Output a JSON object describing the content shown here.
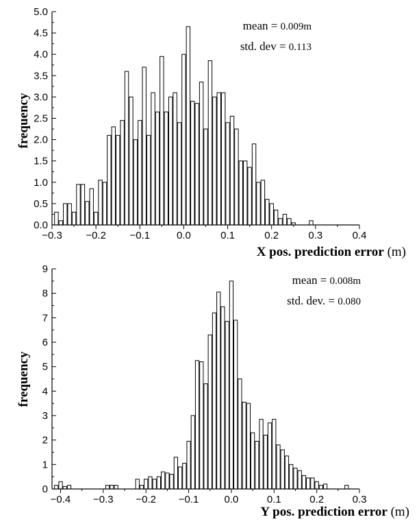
{
  "chart_data": [
    {
      "type": "bar",
      "title": "",
      "ylabel": "frequency",
      "xlabel": "X pos. prediction error",
      "xlabel_unit": "(m)",
      "xlim": [
        -0.3,
        0.4
      ],
      "ylim": [
        0.0,
        5.0
      ],
      "xticks": [
        "-0.3",
        "-0.2",
        "-0.1",
        "0.0",
        "0.1",
        "0.2",
        "0.3",
        "0.4"
      ],
      "yticks": [
        "0.0",
        "0.5",
        "1.0",
        "1.5",
        "2.0",
        "2.5",
        "3.0",
        "3.5",
        "4.0",
        "4.5",
        "5.0"
      ],
      "grid": false,
      "annotations": {
        "mean_label": "mean =",
        "mean_value": "0.009m",
        "std_label": "std. dev =",
        "std_value": "0.113"
      },
      "x": [
        -0.29,
        -0.28,
        -0.27,
        -0.26,
        -0.25,
        -0.24,
        -0.23,
        -0.22,
        -0.21,
        -0.2,
        -0.19,
        -0.18,
        -0.17,
        -0.16,
        -0.15,
        -0.14,
        -0.13,
        -0.12,
        -0.11,
        -0.1,
        -0.09,
        -0.08,
        -0.07,
        -0.06,
        -0.05,
        -0.04,
        -0.03,
        -0.02,
        -0.01,
        0.0,
        0.01,
        0.02,
        0.03,
        0.04,
        0.05,
        0.06,
        0.07,
        0.08,
        0.09,
        0.1,
        0.11,
        0.12,
        0.13,
        0.14,
        0.15,
        0.16,
        0.17,
        0.18,
        0.19,
        0.2,
        0.21,
        0.22,
        0.23,
        0.24,
        0.25,
        0.26,
        0.27,
        0.28,
        0.29,
        0.3,
        0.31
      ],
      "values": [
        0.3,
        0.1,
        0.5,
        0.5,
        0.3,
        0.95,
        0.95,
        0.55,
        0.85,
        0.3,
        1.05,
        1.0,
        2.1,
        2.3,
        2.1,
        2.45,
        3.6,
        3.0,
        2.0,
        2.45,
        3.7,
        2.1,
        3.1,
        2.65,
        3.95,
        2.65,
        3.0,
        3.1,
        2.4,
        4.0,
        4.65,
        2.9,
        2.85,
        3.35,
        2.25,
        3.85,
        3.0,
        3.1,
        3.1,
        2.4,
        2.55,
        2.25,
        1.5,
        1.5,
        1.35,
        1.9,
        1.0,
        1.05,
        0.6,
        0.5,
        0.35,
        0.15,
        0.25,
        0.15,
        0.05,
        0.0,
        0.0,
        0.0,
        0.1,
        0.0,
        0.0
      ]
    },
    {
      "type": "bar",
      "title": "",
      "ylabel": "frequency",
      "xlabel": "Y pos. prediction error",
      "xlabel_unit": "(m)",
      "xlim": [
        -0.42,
        0.3
      ],
      "ylim": [
        0,
        9
      ],
      "xticks": [
        "-0.4",
        "-0.3",
        "-0.2",
        "-0.1",
        "0.0",
        "0.1",
        "0.2",
        "0.3"
      ],
      "yticks": [
        "0",
        "1",
        "2",
        "3",
        "4",
        "5",
        "6",
        "7",
        "8",
        "9"
      ],
      "grid": false,
      "annotations": {
        "mean_label": "mean =",
        "mean_value": "0.008m",
        "std_label": "std. dev. =",
        "std_value": "0.080"
      },
      "x": [
        -0.41,
        -0.4,
        -0.39,
        -0.38,
        -0.29,
        -0.28,
        -0.27,
        -0.22,
        -0.21,
        -0.2,
        -0.19,
        -0.18,
        -0.17,
        -0.16,
        -0.15,
        -0.14,
        -0.13,
        -0.12,
        -0.11,
        -0.1,
        -0.09,
        -0.08,
        -0.07,
        -0.06,
        -0.05,
        -0.04,
        -0.03,
        -0.02,
        -0.01,
        0.0,
        0.01,
        0.02,
        0.03,
        0.04,
        0.05,
        0.06,
        0.07,
        0.08,
        0.09,
        0.1,
        0.11,
        0.12,
        0.13,
        0.14,
        0.15,
        0.16,
        0.17,
        0.18,
        0.19,
        0.2,
        0.21,
        0.22,
        0.27
      ],
      "values": [
        0.15,
        0.3,
        0.1,
        0.15,
        0.15,
        0.15,
        0.15,
        0.4,
        0.15,
        0.4,
        0.5,
        0.4,
        0.5,
        0.7,
        0.65,
        0.6,
        1.3,
        0.9,
        1.05,
        1.95,
        3.0,
        5.25,
        5.2,
        4.3,
        6.3,
        7.2,
        8.05,
        7.45,
        6.85,
        8.5,
        6.9,
        4.5,
        3.55,
        3.5,
        2.3,
        1.95,
        2.85,
        2.2,
        2.7,
        2.85,
        1.8,
        1.6,
        1.35,
        1.0,
        0.85,
        0.75,
        0.55,
        0.45,
        0.45,
        0.3,
        0.15,
        0.2,
        0.15
      ]
    }
  ]
}
